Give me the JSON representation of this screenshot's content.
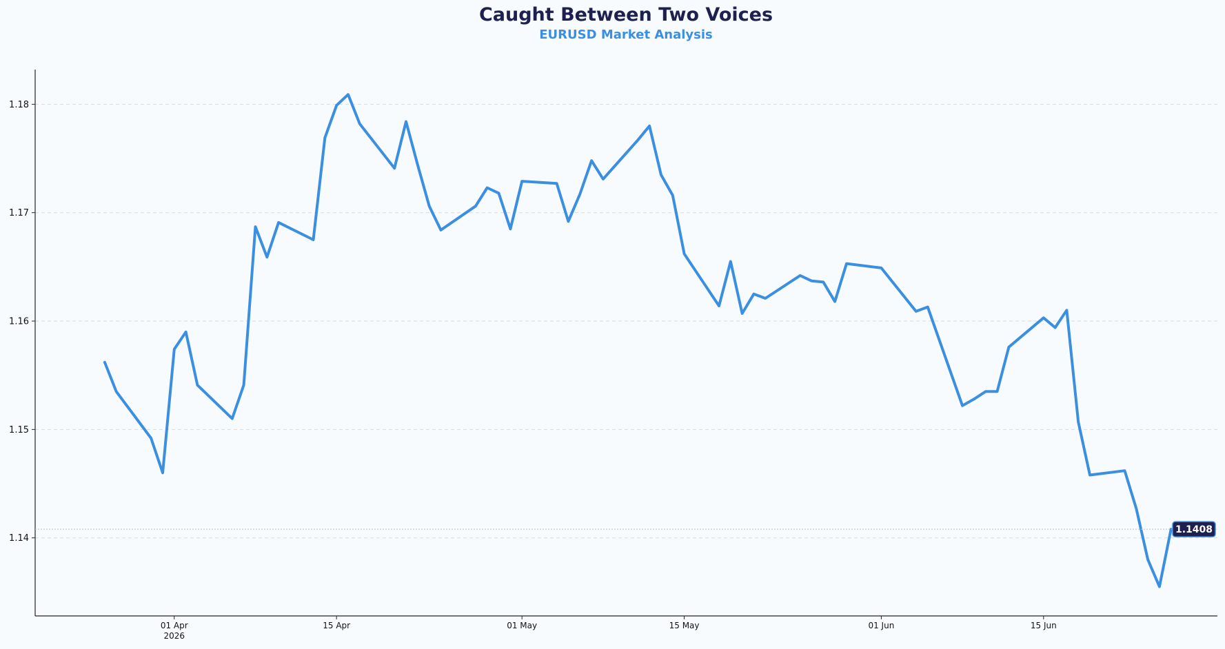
{
  "chart_data": {
    "type": "line",
    "title": "Caught Between Two Voices",
    "subtitle": "EURUSD Market Analysis",
    "xlabel": "",
    "ylabel": "",
    "ylim": [
      1.1328,
      1.1832
    ],
    "xlim": [
      "2026-03-20",
      "2026-06-30"
    ],
    "grid": "horizontal dashed",
    "yticks": [
      1.14,
      1.15,
      1.16,
      1.17,
      1.18
    ],
    "ytick_labels": [
      "1.14",
      "1.15",
      "1.16",
      "1.17",
      "1.18"
    ],
    "xticks": [
      {
        "date": "2026-04-01",
        "label": "01 Apr",
        "sublabel": "2026"
      },
      {
        "date": "2026-04-15",
        "label": "15 Apr",
        "sublabel": ""
      },
      {
        "date": "2026-05-01",
        "label": "01 May",
        "sublabel": ""
      },
      {
        "date": "2026-05-15",
        "label": "15 May",
        "sublabel": ""
      },
      {
        "date": "2026-06-01",
        "label": "01 Jun",
        "sublabel": ""
      },
      {
        "date": "2026-06-15",
        "label": "15 Jun",
        "sublabel": ""
      }
    ],
    "last_value_label": "1.1408",
    "colors": {
      "line": "#3a8fe0",
      "title": "#1e2150",
      "subtitle": "#3a8fe0",
      "badge_bg": "#1e2150",
      "badge_text": "#ffffff",
      "grid": "#d5dbe3",
      "axis": "#222222"
    },
    "series": [
      {
        "x": [
          "2026-03-26",
          "2026-03-27",
          "2026-03-30",
          "2026-03-31",
          "2026-04-01",
          "2026-04-02",
          "2026-04-03",
          "2026-04-06",
          "2026-04-07",
          "2026-04-08",
          "2026-04-09",
          "2026-04-10",
          "2026-04-13",
          "2026-04-14",
          "2026-04-15",
          "2026-04-16",
          "2026-04-17",
          "2026-04-20",
          "2026-04-21",
          "2026-04-22",
          "2026-04-23",
          "2026-04-24",
          "2026-04-27",
          "2026-04-28",
          "2026-04-29",
          "2026-04-30",
          "2026-05-01",
          "2026-05-04",
          "2026-05-05",
          "2026-05-06",
          "2026-05-07",
          "2026-05-08",
          "2026-05-11",
          "2026-05-12",
          "2026-05-13",
          "2026-05-14",
          "2026-05-15",
          "2026-05-18",
          "2026-05-19",
          "2026-05-20",
          "2026-05-21",
          "2026-05-22",
          "2026-05-25",
          "2026-05-26",
          "2026-05-27",
          "2026-05-28",
          "2026-05-29",
          "2026-06-01",
          "2026-06-04",
          "2026-06-05",
          "2026-06-08",
          "2026-06-09",
          "2026-06-10",
          "2026-06-11",
          "2026-06-12",
          "2026-06-15",
          "2026-06-16",
          "2026-06-17",
          "2026-06-18",
          "2026-06-19",
          "2026-06-22",
          "2026-06-23",
          "2026-06-24",
          "2026-06-25",
          "2026-06-26"
        ],
        "values": [
          1.1562,
          1.1535,
          1.1492,
          1.146,
          1.1574,
          1.159,
          1.1541,
          1.151,
          1.1541,
          1.1687,
          1.1659,
          1.1691,
          1.1675,
          1.1769,
          1.1799,
          1.1809,
          1.1782,
          1.1741,
          1.1784,
          1.1744,
          1.1706,
          1.1684,
          1.1706,
          1.1723,
          1.1718,
          1.1685,
          1.1729,
          1.1727,
          1.1692,
          1.1717,
          1.1748,
          1.1731,
          1.1767,
          1.178,
          1.1735,
          1.1716,
          1.1662,
          1.1614,
          1.1655,
          1.1607,
          1.1625,
          1.1621,
          1.1642,
          1.1637,
          1.1636,
          1.1618,
          1.1653,
          1.1649,
          1.1609,
          1.1613,
          1.1522,
          1.1528,
          1.1535,
          1.1535,
          1.1576,
          1.1603,
          1.1594,
          1.161,
          1.1507,
          1.1458,
          1.1462,
          1.1427,
          1.138,
          1.1355,
          1.1408
        ]
      }
    ]
  }
}
